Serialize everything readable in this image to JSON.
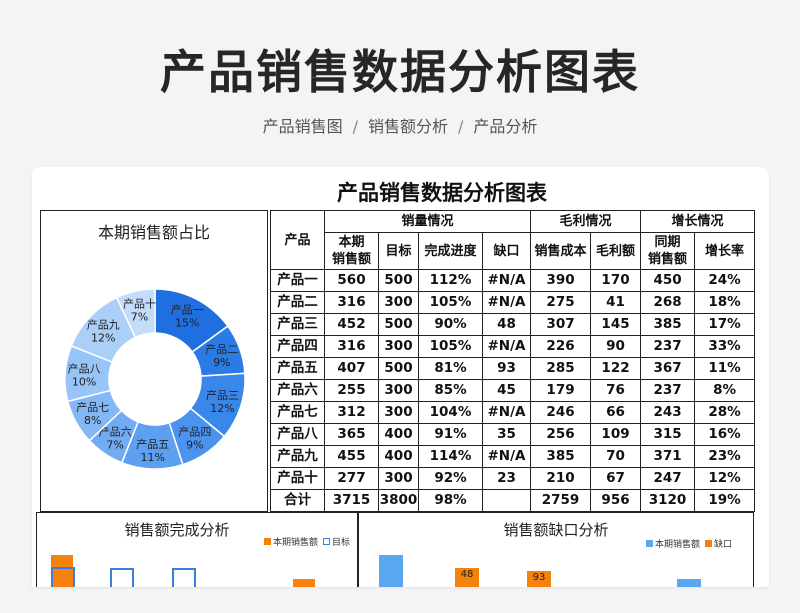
{
  "header": {
    "title": "产品销售数据分析图表",
    "breadcrumb": [
      "产品销售图",
      "销售额分析",
      "产品分析"
    ],
    "separator": "/"
  },
  "sheet": {
    "title": "产品销售数据分析图表"
  },
  "table": {
    "group_headers": {
      "product": "产品",
      "sales": "销量情况",
      "profit": "毛利情况",
      "growth": "增长情况"
    },
    "sub_headers": [
      "本期\n销售额",
      "目标",
      "完成进度",
      "缺口",
      "销售成本",
      "毛利额",
      "同期\n销售额",
      "增长率"
    ],
    "rows": [
      [
        "产品一",
        "560",
        "500",
        "112%",
        "#N/A",
        "390",
        "170",
        "450",
        "24%"
      ],
      [
        "产品二",
        "316",
        "300",
        "105%",
        "#N/A",
        "275",
        "41",
        "268",
        "18%"
      ],
      [
        "产品三",
        "452",
        "500",
        "90%",
        "48",
        "307",
        "145",
        "385",
        "17%"
      ],
      [
        "产品四",
        "316",
        "300",
        "105%",
        "#N/A",
        "226",
        "90",
        "237",
        "33%"
      ],
      [
        "产品五",
        "407",
        "500",
        "81%",
        "93",
        "285",
        "122",
        "367",
        "11%"
      ],
      [
        "产品六",
        "255",
        "300",
        "85%",
        "45",
        "179",
        "76",
        "237",
        "8%"
      ],
      [
        "产品七",
        "312",
        "300",
        "104%",
        "#N/A",
        "246",
        "66",
        "243",
        "28%"
      ],
      [
        "产品八",
        "365",
        "400",
        "91%",
        "35",
        "256",
        "109",
        "315",
        "16%"
      ],
      [
        "产品九",
        "455",
        "400",
        "114%",
        "#N/A",
        "385",
        "70",
        "371",
        "23%"
      ],
      [
        "产品十",
        "277",
        "300",
        "92%",
        "23",
        "210",
        "67",
        "247",
        "12%"
      ],
      [
        "合计",
        "3715",
        "3800",
        "98%",
        "",
        "2759",
        "956",
        "3120",
        "19%"
      ]
    ]
  },
  "chart_data": [
    {
      "type": "pie",
      "title": "本期销售额占比",
      "categories": [
        "产品一",
        "产品二",
        "产品三",
        "产品四",
        "产品五",
        "产品六",
        "产品七",
        "产品八",
        "产品九",
        "产品十"
      ],
      "values": [
        15,
        9,
        12,
        9,
        11,
        7,
        8,
        10,
        12,
        7
      ],
      "labels": [
        "15%",
        "9%",
        "12%",
        "9%",
        "11%",
        "7%",
        "8%",
        "10%",
        "12%",
        "7%"
      ],
      "colors": [
        "#1f6fe0",
        "#2b7be6",
        "#3a87ea",
        "#4b93ee",
        "#5d9ff1",
        "#70abf3",
        "#84b8f5",
        "#98c4f7",
        "#accff8",
        "#c2dcfa"
      ]
    },
    {
      "type": "bar",
      "title": "销售额完成分析",
      "legend": [
        "本期销售额",
        "目标"
      ],
      "colors": [
        "#f5820d",
        "#3b7fd9"
      ]
    },
    {
      "type": "bar",
      "title": "销售额缺口分析",
      "legend": [
        "本期销售额",
        "缺口"
      ],
      "colors": [
        "#5aa6f0",
        "#f5820d"
      ],
      "data_labels": [
        "48",
        "93"
      ]
    }
  ]
}
